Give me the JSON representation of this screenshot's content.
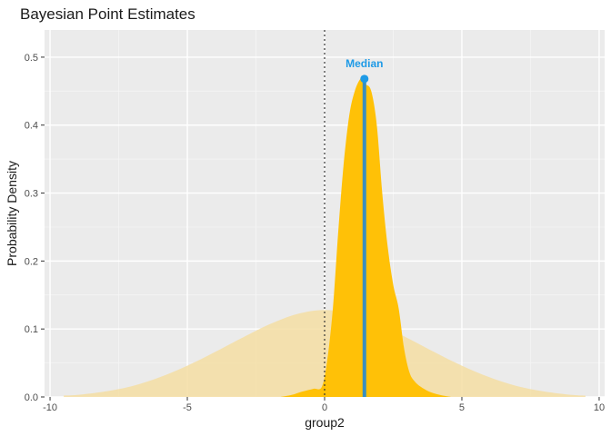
{
  "chart_data": {
    "type": "area",
    "title": "Bayesian Point Estimates",
    "xlabel": "group2",
    "ylabel": "Probability Density",
    "xlim": [
      -10.2,
      10.2
    ],
    "ylim": [
      0,
      0.54
    ],
    "x_ticks": [
      -10,
      -5,
      0,
      5,
      10
    ],
    "x_tick_labels": [
      "-10",
      "-5",
      "0",
      "5",
      "10"
    ],
    "y_ticks": [
      0.0,
      0.1,
      0.2,
      0.3,
      0.4,
      0.5
    ],
    "y_tick_labels": [
      "0.0",
      "0.1",
      "0.2",
      "0.3",
      "0.4",
      "0.5"
    ],
    "grid": true,
    "reference_line_x": 0,
    "prior": {
      "color": "#F5DEA3",
      "x": [
        -9.5,
        -9,
        -8,
        -7,
        -6,
        -5,
        -4,
        -3,
        -2,
        -1,
        0,
        1,
        2,
        3,
        4,
        5,
        6,
        7,
        8,
        9,
        9.5
      ],
      "y": [
        0.002,
        0.003,
        0.008,
        0.016,
        0.029,
        0.046,
        0.066,
        0.087,
        0.107,
        0.122,
        0.128,
        0.122,
        0.107,
        0.087,
        0.066,
        0.046,
        0.029,
        0.016,
        0.008,
        0.003,
        0.002
      ]
    },
    "posterior": {
      "color": "#FFC107",
      "x": [
        -1.6,
        -1.2,
        -0.8,
        -0.4,
        -0.1,
        0.1,
        0.3,
        0.5,
        0.7,
        0.9,
        1.1,
        1.3,
        1.4,
        1.5,
        1.7,
        1.9,
        2.1,
        2.3,
        2.5,
        2.7,
        2.9,
        3.1,
        3.3,
        3.5,
        3.8,
        4.2,
        4.6
      ],
      "y": [
        0.0,
        0.003,
        0.008,
        0.012,
        0.015,
        0.055,
        0.13,
        0.245,
        0.345,
        0.415,
        0.45,
        0.468,
        0.466,
        0.46,
        0.45,
        0.4,
        0.3,
        0.22,
        0.165,
        0.13,
        0.07,
        0.035,
        0.022,
        0.015,
        0.008,
        0.003,
        0.0
      ]
    },
    "median": {
      "label": "Median",
      "x": 1.45,
      "y": 0.468,
      "color": "#1E9AE6",
      "line_color": "#3A8FBF"
    }
  }
}
